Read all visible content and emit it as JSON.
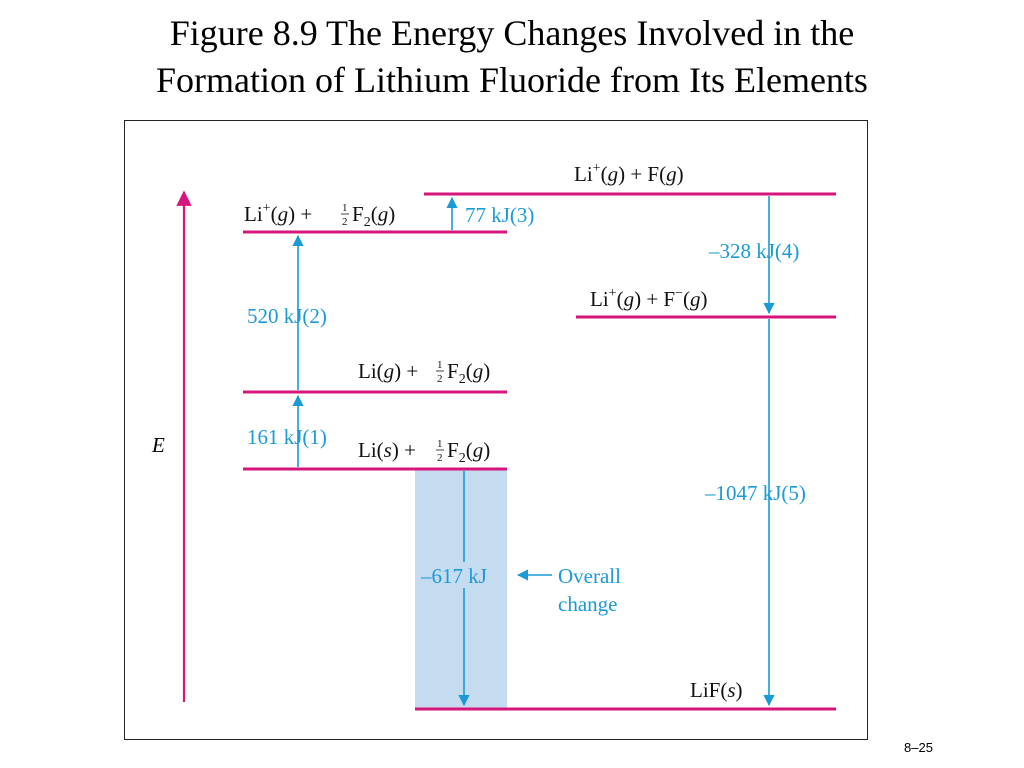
{
  "slide": {
    "title_line1": "Figure 8.9  The Energy Changes Involved in the",
    "title_line2": "Formation of Lithium Fluoride from Its Elements",
    "slide_number": "8–25"
  },
  "diagram": {
    "axis_label": "E",
    "colors": {
      "level_line": "#d6167a",
      "arrow": "#1a9ad6",
      "overall_fill": "#c5dcf0",
      "axis": "#d6167a"
    },
    "levels": {
      "li_plus_f": {
        "a": "Li",
        "sup": "+",
        "b": "(",
        "g1": "g",
        "c": ") + F(",
        "g2": "g",
        "d": ")"
      },
      "li_plus_half_f2": {
        "a": "Li",
        "sup": "+",
        "b": "(",
        "g1": "g",
        "c": ") + ",
        "num": "1",
        "den": "2",
        "d": "F",
        "sub": "2",
        "e": "(",
        "g2": "g",
        "f": ")"
      },
      "li_plus_f_minus": {
        "a": "Li",
        "sup": "+",
        "b": "(",
        "g1": "g",
        "c": ") + F",
        "sup2": "−",
        "d": "(",
        "g2": "g",
        "e": ")"
      },
      "li_g_half_f2": {
        "a": "Li(",
        "g1": "g",
        "b": ") + ",
        "num": "1",
        "den": "2",
        "c": "F",
        "sub": "2",
        "d": "(",
        "g2": "g",
        "e": ")"
      },
      "li_s_half_f2": {
        "a": "Li(",
        "s1": "s",
        "b": ") + ",
        "num": "1",
        "den": "2",
        "c": "F",
        "sub": "2",
        "d": "(",
        "g2": "g",
        "e": ")"
      },
      "lif_s": {
        "a": "LiF(",
        "s1": "s",
        "b": ")"
      }
    },
    "steps": {
      "step1": "161 kJ(1)",
      "step2": "520 kJ(2)",
      "step3": "77 kJ(3)",
      "step4": "–328 kJ(4)",
      "step5": "–1047 kJ(5)",
      "overall_value": "–617 kJ",
      "overall_label_line1": "Overall",
      "overall_label_line2": "change"
    }
  }
}
